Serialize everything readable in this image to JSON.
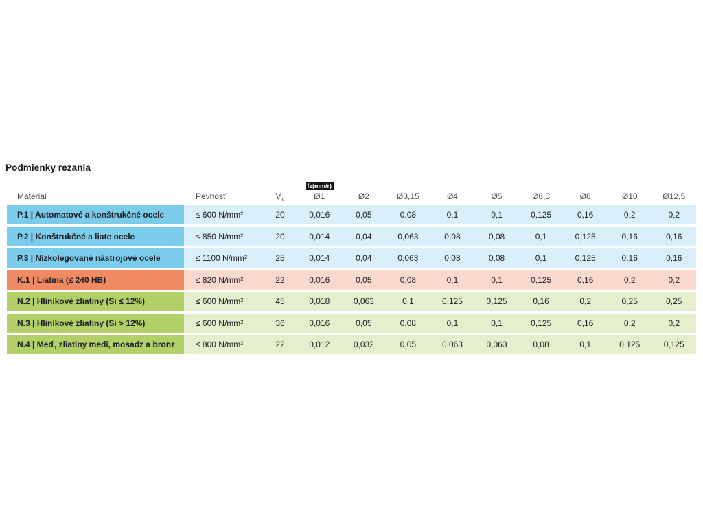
{
  "page": {
    "title": "Podmienky rezania"
  },
  "table": {
    "headers": {
      "material": "Materiál",
      "pevnost": "Pevnosť",
      "vc_main": "V",
      "vc_sub": "c",
      "fz_badge": "fz(mm/r)",
      "diameters": [
        "Ø1",
        "Ø2",
        "Ø3,15",
        "Ø4",
        "Ø5",
        "Ø6,3",
        "Ø8",
        "Ø10",
        "Ø12,5"
      ]
    },
    "colors": {
      "P": {
        "dark": "#7bcbea",
        "light": "#d9effa"
      },
      "K": {
        "dark": "#ef8a62",
        "light": "#fbdacd"
      },
      "N": {
        "dark": "#b1d168",
        "light": "#e5efcd"
      }
    },
    "rows": [
      {
        "group": "P",
        "material": "P.1 | Automatové a konštrukčné ocele",
        "pevnost": "≤ 600 N/mm²",
        "vc": "20",
        "values": [
          "0,016",
          "0,05",
          "0,08",
          "0,1",
          "0,1",
          "0,125",
          "0,16",
          "0,2",
          "0,2"
        ]
      },
      {
        "group": "P",
        "material": "P.2 | Konštrukčné a liate ocele",
        "pevnost": "≤ 850 N/mm²",
        "vc": "20",
        "values": [
          "0,014",
          "0,04",
          "0,063",
          "0,08",
          "0,08",
          "0,1",
          "0,125",
          "0,16",
          "0,16"
        ]
      },
      {
        "group": "P",
        "material": "P.3 | Nízkolegované nástrojové ocele",
        "pevnost": "≤ 1100 N/mm²",
        "vc": "25",
        "values": [
          "0,014",
          "0,04",
          "0,063",
          "0,08",
          "0,08",
          "0,1",
          "0,125",
          "0,16",
          "0,16"
        ]
      },
      {
        "group": "K",
        "material": "K.1 | Liatina (≤ 240 HB)",
        "pevnost": "≤ 820 N/mm²",
        "vc": "22",
        "values": [
          "0,016",
          "0,05",
          "0,08",
          "0,1",
          "0,1",
          "0,125",
          "0,16",
          "0,2",
          "0,2"
        ]
      },
      {
        "group": "N",
        "material": "N.2 | Hliníkové zliatiny (Si ≤ 12%)",
        "pevnost": "≤ 600 N/mm²",
        "vc": "45",
        "values": [
          "0,018",
          "0,063",
          "0,1",
          "0,125",
          "0,125",
          "0,16",
          "0,2",
          "0,25",
          "0,25"
        ]
      },
      {
        "group": "N",
        "material": "N.3 | Hliníkové zliatiny (Si > 12%)",
        "pevnost": "≤ 600 N/mm²",
        "vc": "36",
        "values": [
          "0,016",
          "0,05",
          "0,08",
          "0,1",
          "0,1",
          "0,125",
          "0,16",
          "0,2",
          "0,2"
        ]
      },
      {
        "group": "N",
        "material": "N.4 | Meď, zliatiny medi, mosadz a bronz",
        "pevnost": "≤ 800 N/mm²",
        "vc": "22",
        "values": [
          "0,012",
          "0,032",
          "0,05",
          "0,063",
          "0,063",
          "0,08",
          "0,1",
          "0,125",
          "0,125"
        ]
      }
    ]
  }
}
